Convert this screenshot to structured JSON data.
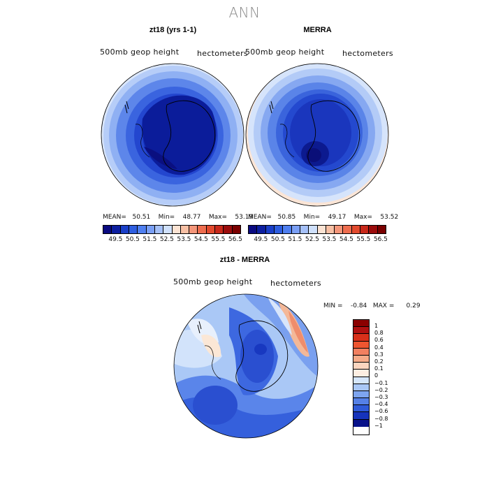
{
  "title": "ANN",
  "panels": [
    {
      "title": "zt18 (yrs 1-1)",
      "variable": "500mb geop height",
      "units": "hectometers",
      "stats": "MEAN=   50.51    Min=    48.77    Max=    53.19",
      "colorbar_labels": [
        "49.5",
        "50.5",
        "51.5",
        "52.5",
        "53.5",
        "54.5",
        "55.5",
        "56.5"
      ]
    },
    {
      "title": "MERRA",
      "variable": "500mb geop height",
      "units": "hectometers",
      "stats": "MEAN=   50.85    Min=    49.17    Max=    53.52",
      "colorbar_labels": [
        "49.5",
        "50.5",
        "51.5",
        "52.5",
        "53.5",
        "54.5",
        "55.5",
        "56.5"
      ]
    },
    {
      "title": "zt18 - MERRA",
      "variable": "500mb geop height",
      "units": "hectometers",
      "stats": "MIN =    -0.84   MAX =      0.29",
      "colorbar_labels": [
        "1",
        "0.8",
        "0.6",
        "0.4",
        "0.3",
        "0.2",
        "0.1",
        "0",
        "-0.1",
        "-0.2",
        "-0.3",
        "-0.4",
        "-0.6",
        "-0.8",
        "-1"
      ]
    }
  ],
  "colors": {
    "abs_scale": [
      "#0a0a80",
      "#0d1fa0",
      "#1a3fc8",
      "#2e5ee0",
      "#4f7ff0",
      "#7a9ff5",
      "#a5c0f8",
      "#cfe0fb",
      "#fbe3d3",
      "#f7c0a5",
      "#f4967a",
      "#ee6d4f",
      "#e24a2e",
      "#c8281a",
      "#9b0c0c",
      "#7a0000"
    ],
    "diff_scale": [
      "#8b0000",
      "#b01010",
      "#d8301a",
      "#ee5530",
      "#f28060",
      "#f6aa88",
      "#fbd5bf",
      "#fdeee2",
      "#d5e6fb",
      "#a9c7f6",
      "#7da4ef",
      "#5580e6",
      "#2f5ad8",
      "#1633bb",
      "#08128a"
    ]
  }
}
